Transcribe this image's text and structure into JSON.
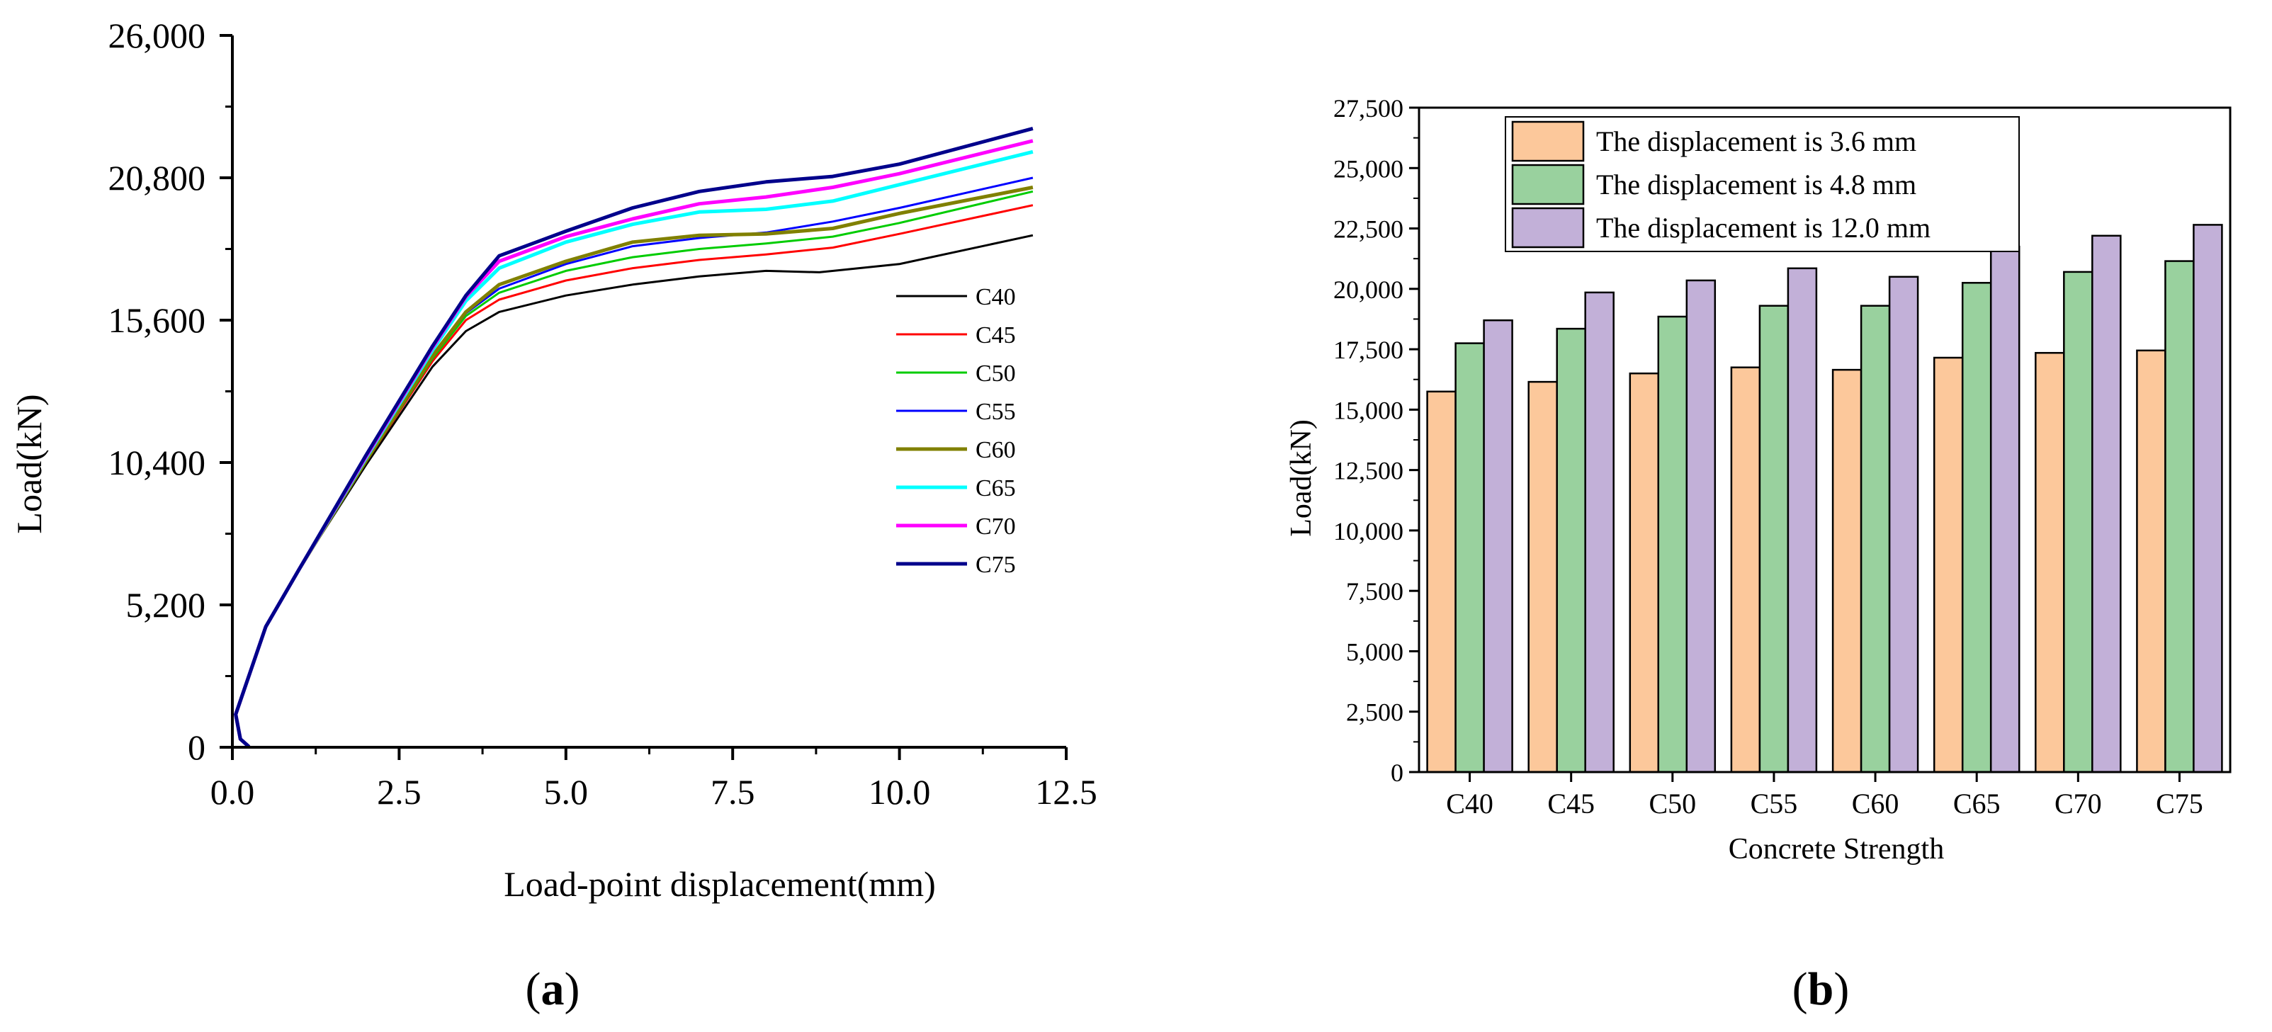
{
  "chart_data": [
    {
      "panel": "(a)",
      "panel_letter": "a",
      "type": "line",
      "title": "",
      "xlabel": "Load-point displacement(mm)",
      "ylabel": "Load(kN)",
      "xlim": [
        0,
        12.5
      ],
      "ylim": [
        0,
        26000
      ],
      "xticks": [
        0,
        2.5,
        5,
        7.5,
        10,
        12.5
      ],
      "xtick_labels": [
        "0.0",
        "2.5",
        "5.0",
        "7.5",
        "10.0",
        "12.5"
      ],
      "yticks": [
        0,
        5200,
        10400,
        15600,
        20800,
        26000
      ],
      "ytick_labels": [
        "0",
        "5,200",
        "10,400",
        "15,600",
        "20,800",
        "26,000"
      ],
      "legend_position": "right",
      "series": [
        {
          "name": "C40",
          "color": "#000000",
          "points": [
            [
              0.25,
              20
            ],
            [
              0.12,
              300
            ],
            [
              0.05,
              1200
            ],
            [
              0.5,
              4400
            ],
            [
              1.0,
              6500
            ],
            [
              2.0,
              10300
            ],
            [
              3.0,
              13900
            ],
            [
              3.5,
              15200
            ],
            [
              4.0,
              15900
            ],
            [
              5.0,
              16500
            ],
            [
              6.0,
              16900
            ],
            [
              7.0,
              17200
            ],
            [
              8.0,
              17400
            ],
            [
              8.8,
              17350
            ],
            [
              10.0,
              17650
            ],
            [
              12.0,
              18700
            ]
          ]
        },
        {
          "name": "C45",
          "color": "#ff0000",
          "points": [
            [
              0.25,
              20
            ],
            [
              0.12,
              300
            ],
            [
              0.05,
              1200
            ],
            [
              0.5,
              4400
            ],
            [
              1.0,
              6500
            ],
            [
              2.0,
              10400
            ],
            [
              3.0,
              14100
            ],
            [
              3.5,
              15600
            ],
            [
              4.0,
              16350
            ],
            [
              5.0,
              17050
            ],
            [
              6.0,
              17500
            ],
            [
              7.0,
              17800
            ],
            [
              8.0,
              18000
            ],
            [
              9.0,
              18250
            ],
            [
              10.0,
              18750
            ],
            [
              12.0,
              19800
            ]
          ]
        },
        {
          "name": "C50",
          "color": "#00cc00",
          "points": [
            [
              0.25,
              20
            ],
            [
              0.12,
              300
            ],
            [
              0.05,
              1200
            ],
            [
              0.5,
              4400
            ],
            [
              1.0,
              6500
            ],
            [
              2.0,
              10400
            ],
            [
              3.0,
              14200
            ],
            [
              3.5,
              15750
            ],
            [
              4.0,
              16600
            ],
            [
              5.0,
              17400
            ],
            [
              6.0,
              17900
            ],
            [
              7.0,
              18200
            ],
            [
              8.0,
              18400
            ],
            [
              9.0,
              18650
            ],
            [
              10.0,
              19150
            ],
            [
              12.0,
              20300
            ]
          ]
        },
        {
          "name": "C55",
          "color": "#0000ff",
          "points": [
            [
              0.25,
              20
            ],
            [
              0.12,
              300
            ],
            [
              0.05,
              1200
            ],
            [
              0.5,
              4400
            ],
            [
              1.0,
              6500
            ],
            [
              2.0,
              10450
            ],
            [
              3.0,
              14300
            ],
            [
              3.5,
              15850
            ],
            [
              4.0,
              16750
            ],
            [
              5.0,
              17650
            ],
            [
              6.0,
              18300
            ],
            [
              7.0,
              18600
            ],
            [
              8.0,
              18800
            ],
            [
              9.0,
              19200
            ],
            [
              10.0,
              19700
            ],
            [
              12.0,
              20800
            ]
          ]
        },
        {
          "name": "C60",
          "color": "#808000",
          "points": [
            [
              0.25,
              20
            ],
            [
              0.12,
              300
            ],
            [
              0.05,
              1200
            ],
            [
              0.5,
              4400
            ],
            [
              1.0,
              6500
            ],
            [
              2.0,
              10450
            ],
            [
              3.0,
              14300
            ],
            [
              3.5,
              15900
            ],
            [
              4.0,
              16900
            ],
            [
              5.0,
              17750
            ],
            [
              6.0,
              18450
            ],
            [
              7.0,
              18700
            ],
            [
              8.0,
              18750
            ],
            [
              9.0,
              18950
            ],
            [
              10.0,
              19500
            ],
            [
              12.0,
              20450
            ]
          ]
        },
        {
          "name": "C65",
          "color": "#00ffff",
          "points": [
            [
              0.25,
              20
            ],
            [
              0.12,
              300
            ],
            [
              0.05,
              1200
            ],
            [
              0.5,
              4400
            ],
            [
              1.0,
              6500
            ],
            [
              2.0,
              10550
            ],
            [
              3.0,
              14500
            ],
            [
              3.5,
              16300
            ],
            [
              4.0,
              17500
            ],
            [
              5.0,
              18450
            ],
            [
              6.0,
              19100
            ],
            [
              7.0,
              19550
            ],
            [
              8.0,
              19650
            ],
            [
              9.0,
              19950
            ],
            [
              10.0,
              20550
            ],
            [
              12.0,
              21750
            ]
          ]
        },
        {
          "name": "C70",
          "color": "#ff00ff",
          "points": [
            [
              0.25,
              20
            ],
            [
              0.12,
              300
            ],
            [
              0.05,
              1200
            ],
            [
              0.5,
              4400
            ],
            [
              1.0,
              6500
            ],
            [
              2.0,
              10600
            ],
            [
              3.0,
              14600
            ],
            [
              3.5,
              16450
            ],
            [
              4.0,
              17750
            ],
            [
              5.0,
              18650
            ],
            [
              6.0,
              19300
            ],
            [
              7.0,
              19850
            ],
            [
              8.0,
              20100
            ],
            [
              9.0,
              20450
            ],
            [
              10.0,
              20950
            ],
            [
              12.0,
              22150
            ]
          ]
        },
        {
          "name": "C75",
          "color": "#00008b",
          "points": [
            [
              0.25,
              20
            ],
            [
              0.12,
              300
            ],
            [
              0.05,
              1200
            ],
            [
              0.5,
              4400
            ],
            [
              1.0,
              6500
            ],
            [
              2.0,
              10650
            ],
            [
              3.0,
              14650
            ],
            [
              3.5,
              16500
            ],
            [
              4.0,
              17950
            ],
            [
              5.0,
              18850
            ],
            [
              6.0,
              19700
            ],
            [
              7.0,
              20300
            ],
            [
              8.0,
              20650
            ],
            [
              9.0,
              20850
            ],
            [
              10.0,
              21300
            ],
            [
              12.0,
              22600
            ]
          ]
        }
      ]
    },
    {
      "panel": "(b)",
      "panel_letter": "b",
      "type": "bar",
      "title": "",
      "xlabel": "Concrete Strength",
      "ylabel": "Load(kN)",
      "ylim": [
        0,
        27500
      ],
      "yticks": [
        0,
        2500,
        5000,
        7500,
        10000,
        12500,
        15000,
        17500,
        20000,
        22500,
        25000,
        27500
      ],
      "ytick_labels": [
        "0",
        "2,500",
        "5,000",
        "7,500",
        "10,000",
        "12,500",
        "15,000",
        "17,500",
        "20,000",
        "22,500",
        "25,000",
        "27,500"
      ],
      "categories": [
        "C40",
        "C45",
        "C50",
        "C55",
        "C60",
        "C65",
        "C70",
        "C75"
      ],
      "legend_position": "top-left",
      "series": [
        {
          "name": "The displacement is 3.6 mm",
          "color": "#fcc89b",
          "values": [
            15750,
            16150,
            16500,
            16750,
            16650,
            17150,
            17350,
            17450
          ]
        },
        {
          "name": "The displacement is 4.8 mm",
          "color": "#99d19e",
          "values": [
            17750,
            18350,
            18850,
            19300,
            19300,
            20250,
            20700,
            21150
          ]
        },
        {
          "name": "The displacement is 12.0 mm",
          "color": "#c2b0d8",
          "values": [
            18700,
            19850,
            20350,
            20850,
            20500,
            21750,
            22200,
            22650
          ]
        }
      ]
    }
  ]
}
